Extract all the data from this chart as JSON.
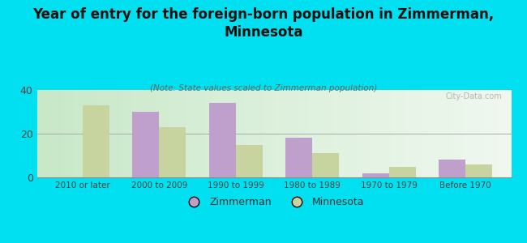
{
  "title": "Year of entry for the foreign-born population in Zimmerman,\nMinnesota",
  "note": "(Note: State values scaled to Zimmerman population)",
  "categories": [
    "2010 or later",
    "2000 to 2009",
    "1990 to 1999",
    "1980 to 1989",
    "1970 to 1979",
    "Before 1970"
  ],
  "zimmerman": [
    0,
    30,
    34,
    18,
    2,
    8
  ],
  "minnesota": [
    33,
    23,
    15,
    11,
    5,
    6
  ],
  "zimmerman_color": "#bf9fcc",
  "minnesota_color": "#c8d4a0",
  "bg_outer": "#00e0f0",
  "bg_plot_left": "#d4ecd4",
  "bg_plot_right": "#f0f8f0",
  "ylim": [
    0,
    40
  ],
  "yticks": [
    0,
    20,
    40
  ],
  "bar_width": 0.35,
  "watermark": "City-Data.com",
  "legend_zimmerman": "Zimmerman",
  "legend_minnesota": "Minnesota",
  "title_fontsize": 12,
  "note_fontsize": 7.5
}
